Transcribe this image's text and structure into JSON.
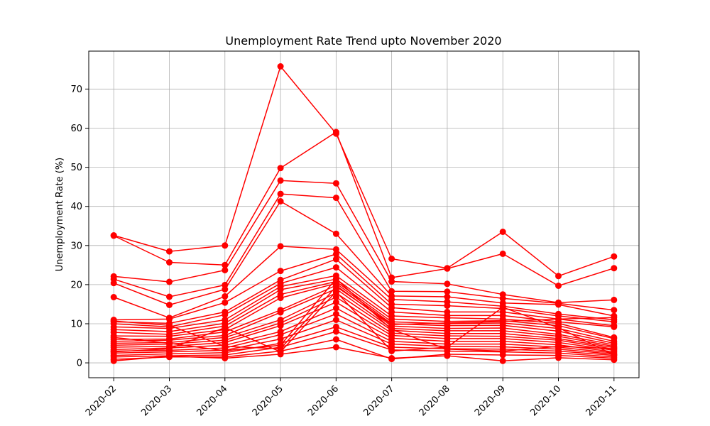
{
  "chart_data": {
    "type": "line",
    "title": "Unemployment Rate Trend upto November 2020",
    "xlabel": "",
    "ylabel": "Unemployment Rate (%)",
    "categories": [
      "2020-02",
      "2020-03",
      "2020-04",
      "2020-05",
      "2020-06",
      "2020-07",
      "2020-08",
      "2020-09",
      "2020-10",
      "2020-11"
    ],
    "yticks": [
      0,
      10,
      20,
      30,
      40,
      50,
      60,
      70
    ],
    "ylim": [
      -3.8,
      79.7
    ],
    "grid": true,
    "colors": {
      "series": "#ff0000",
      "grid": "#b0b0b0",
      "frame": "#000000"
    },
    "series": [
      {
        "values": [
          32.6,
          28.5,
          30.0,
          75.8,
          58.6,
          26.6,
          24.2,
          33.5,
          22.2,
          27.2
        ]
      },
      {
        "values": [
          32.5,
          25.7,
          25.0,
          49.8,
          59.0,
          21.8,
          24.1,
          27.9,
          19.7,
          24.2
        ]
      },
      {
        "values": [
          22.1,
          20.7,
          23.7,
          46.6,
          45.9,
          20.8,
          20.2,
          17.5,
          15.4,
          16.1
        ]
      },
      {
        "values": [
          21.4,
          16.9,
          19.9,
          43.2,
          42.2,
          18.3,
          18.2,
          16.5,
          15.2,
          13.5
        ]
      },
      {
        "values": [
          20.4,
          14.8,
          18.8,
          41.3,
          33.0,
          17.1,
          16.9,
          15.3,
          14.9,
          12.0
        ]
      },
      {
        "values": [
          16.8,
          11.5,
          17.0,
          29.8,
          29.0,
          16.2,
          15.6,
          14.5,
          12.5,
          11.0
        ]
      },
      {
        "values": [
          11.0,
          11.2,
          15.4,
          23.5,
          27.8,
          15.0,
          14.6,
          13.9,
          12.0,
          10.5
        ]
      },
      {
        "values": [
          10.5,
          10.1,
          13.0,
          21.2,
          26.5,
          14.1,
          13.0,
          13.0,
          11.2,
          9.5
        ]
      },
      {
        "values": [
          10.0,
          9.2,
          12.3,
          20.3,
          24.4,
          13.0,
          12.1,
          12.1,
          10.5,
          9.2
        ]
      },
      {
        "values": [
          9.2,
          8.8,
          11.0,
          19.5,
          22.3,
          12.0,
          11.5,
          11.2,
          10.1,
          6.5
        ]
      },
      {
        "values": [
          8.5,
          8.0,
          10.1,
          18.7,
          21.4,
          11.2,
          10.6,
          10.8,
          9.5,
          6.2
        ]
      },
      {
        "values": [
          7.8,
          7.3,
          9.4,
          17.5,
          20.8,
          10.5,
          10.0,
          10.2,
          8.8,
          5.5
        ]
      },
      {
        "values": [
          6.9,
          6.8,
          8.5,
          16.6,
          20.3,
          10.0,
          9.5,
          9.6,
          8.1,
          5.0
        ]
      },
      {
        "values": [
          6.0,
          6.1,
          7.9,
          13.5,
          19.8,
          9.4,
          8.8,
          8.9,
          7.3,
          4.6
        ]
      },
      {
        "values": [
          5.5,
          5.8,
          7.0,
          12.9,
          18.9,
          8.8,
          8.2,
          8.2,
          6.8,
          4.2
        ]
      },
      {
        "values": [
          5.0,
          5.2,
          6.5,
          11.0,
          17.9,
          8.3,
          7.5,
          7.5,
          6.2,
          3.9
        ]
      },
      {
        "values": [
          4.5,
          4.8,
          5.8,
          10.2,
          16.8,
          7.6,
          6.9,
          6.8,
          5.8,
          3.5
        ]
      },
      {
        "values": [
          4.0,
          4.2,
          5.2,
          9.5,
          15.5,
          7.0,
          6.2,
          6.2,
          5.2,
          3.2
        ]
      },
      {
        "values": [
          3.4,
          3.8,
          4.5,
          8.0,
          14.0,
          6.3,
          5.5,
          5.5,
          4.6,
          2.8
        ]
      },
      {
        "values": [
          3.0,
          3.2,
          3.8,
          7.2,
          12.5,
          5.5,
          4.8,
          4.8,
          4.0,
          2.5
        ]
      },
      {
        "values": [
          2.5,
          2.8,
          3.2,
          6.1,
          11.0,
          4.8,
          4.2,
          4.1,
          3.5,
          2.2
        ]
      },
      {
        "values": [
          1.9,
          2.3,
          2.6,
          5.0,
          9.2,
          4.0,
          3.6,
          3.5,
          3.0,
          1.9
        ]
      },
      {
        "values": [
          1.5,
          1.8,
          2.0,
          4.0,
          8.0,
          3.3,
          3.0,
          2.8,
          2.5,
          1.5
        ]
      },
      {
        "values": [
          0.9,
          1.5,
          1.5,
          3.0,
          6.0,
          1.0,
          2.2,
          2.0,
          1.9,
          1.2
        ]
      },
      {
        "values": [
          0.5,
          1.7,
          1.2,
          2.2,
          4.0,
          1.2,
          1.8,
          0.5,
          1.3,
          0.8
        ]
      },
      {
        "values": [
          10.7,
          9.6,
          4.2,
          3.6,
          19.5,
          9.8,
          10.2,
          10.6,
          11.2,
          11.6
        ]
      },
      {
        "values": [
          6.5,
          5.0,
          3.1,
          4.5,
          21.5,
          8.5,
          3.5,
          3.0,
          4.2,
          3.6
        ]
      },
      {
        "values": [
          2.8,
          3.6,
          9.0,
          2.8,
          18.2,
          3.0,
          4.0,
          14.2,
          9.0,
          2.0
        ]
      }
    ]
  }
}
